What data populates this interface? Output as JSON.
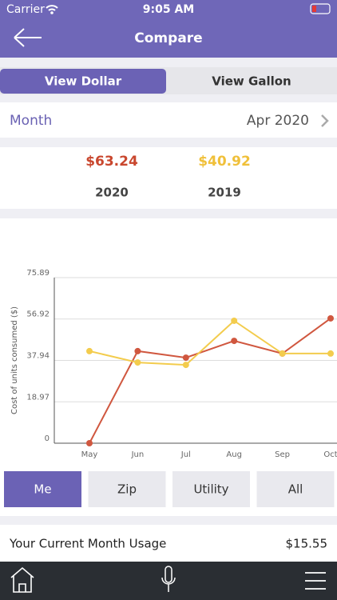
{
  "status_bar": {
    "carrier": "Carrier",
    "time": "9:05 AM"
  },
  "header": {
    "title": "Compare"
  },
  "tabs": [
    {
      "label": "View Dollar",
      "active": true
    },
    {
      "label": "View Gallon",
      "active": false
    }
  ],
  "period": {
    "label": "Month",
    "value": "Apr 2020"
  },
  "comparison": [
    {
      "amount": "$63.24",
      "year": "2020",
      "color": "#c9472e"
    },
    {
      "amount": "$40.92",
      "year": "2019",
      "color": "#f0c03a"
    }
  ],
  "chart_data": {
    "type": "line",
    "y_label": "Cost of units consumed ($)",
    "categories": [
      "May",
      "Jun",
      "Jul",
      "Aug",
      "Sep",
      "Oct"
    ],
    "series": [
      {
        "color": "#d0573f",
        "values": [
          0,
          42.2,
          39.2,
          46.9,
          41.1,
          57.2
        ]
      },
      {
        "color": "#f3cc4d",
        "values": [
          42.2,
          37.0,
          35.9,
          56.1,
          41.1,
          41.1
        ]
      }
    ],
    "ylim": [
      0,
      75.89
    ],
    "yticks": [
      0,
      18.97,
      37.94,
      56.92,
      75.89
    ],
    "grid": true
  },
  "filters": [
    {
      "label": "Me",
      "active": true
    },
    {
      "label": "Zip",
      "active": false
    },
    {
      "label": "Utility",
      "active": false
    },
    {
      "label": "All",
      "active": false
    }
  ],
  "usage": {
    "label": "Your Current Month Usage",
    "value": "$15.55"
  }
}
